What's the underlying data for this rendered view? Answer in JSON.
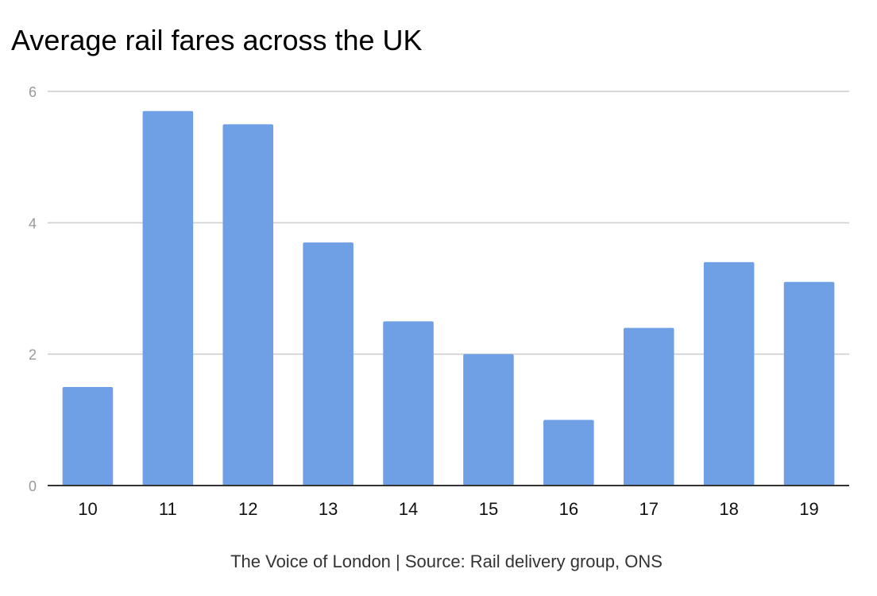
{
  "title": "Average rail fares across the UK",
  "footer": "The Voice of London | Source: Rail delivery group, ONS",
  "colors": {
    "bar": "#6fa0e6",
    "grid": "#cccccc",
    "axis": "#333333",
    "ytick_text": "#999999",
    "xtick_text": "#111111"
  },
  "chart_data": {
    "type": "bar",
    "title": "Average rail fares across the UK",
    "xlabel": "",
    "ylabel": "",
    "categories": [
      "10",
      "11",
      "12",
      "13",
      "14",
      "15",
      "16",
      "17",
      "18",
      "19"
    ],
    "values": [
      1.5,
      5.7,
      5.5,
      3.7,
      2.5,
      2.0,
      1.0,
      2.4,
      3.4,
      3.1
    ],
    "ylim": [
      0,
      6
    ],
    "yticks": [
      "0",
      "2",
      "4",
      "6"
    ],
    "grid": true,
    "legend": "none"
  }
}
